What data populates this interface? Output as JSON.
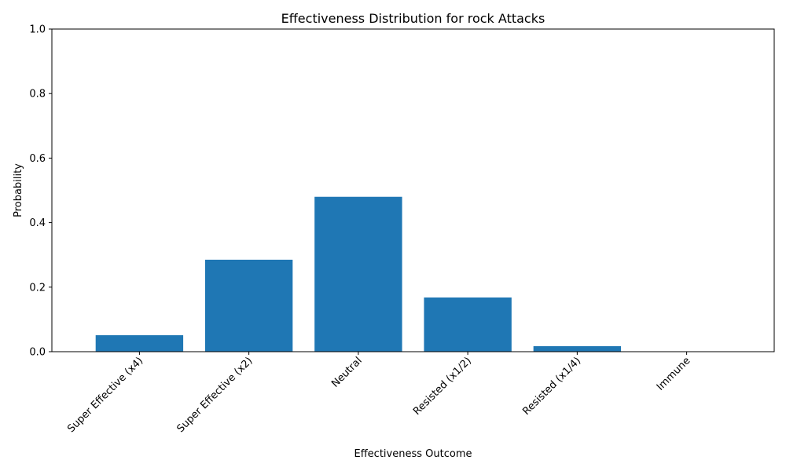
{
  "chart_data": {
    "type": "bar",
    "title": "Effectiveness Distribution for rock Attacks",
    "xlabel": "Effectiveness Outcome",
    "ylabel": "Probability",
    "categories": [
      "Super Effective (x4)",
      "Super Effective (x2)",
      "Neutral",
      "Resisted (x1/2)",
      "Resisted (x1/4)",
      "Immune"
    ],
    "values": [
      0.051,
      0.285,
      0.48,
      0.168,
      0.017,
      0.0
    ],
    "ylim": [
      0,
      1
    ],
    "yticks": [
      "0.0",
      "0.2",
      "0.4",
      "0.6",
      "0.8",
      "1.0"
    ],
    "grid": false,
    "bar_color": "#1f77b4"
  }
}
